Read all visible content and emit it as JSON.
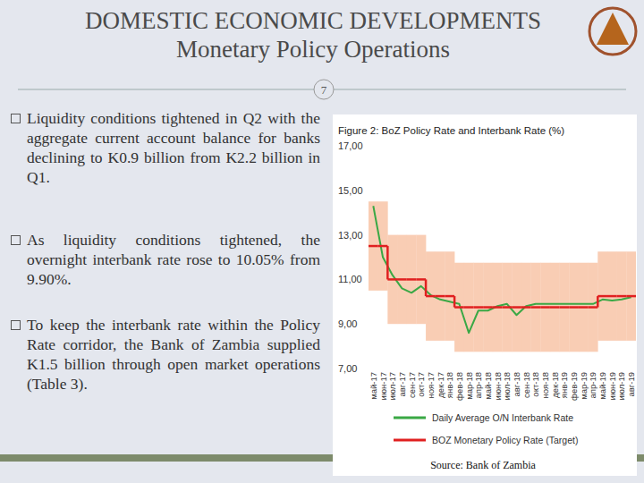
{
  "header": {
    "title": "DOMESTIC ECONOMIC DEVELOPMENTS",
    "subtitle": "Monetary Policy Operations",
    "page_number": "7"
  },
  "bullets": [
    "Liquidity conditions tightened in Q2 with the aggregate current account balance for banks declining to K0.9 billion from K2.2 billion in Q1.",
    "As liquidity conditions tightened, the overnight interbank rate rose to 10.05% from 9.90%.",
    "To keep the interbank rate within the Policy Rate corridor, the Bank of Zambia supplied K1.5 billion through open market operations (Table 3)."
  ],
  "chart_data": {
    "type": "line",
    "title": "Figure 2: BoZ Policy Rate and Interbank Rate (%)",
    "source": "Source: Bank of Zambia",
    "categories": [
      "май-17",
      "июн-17",
      "июл-17",
      "авг-17",
      "сен-17",
      "окт-17",
      "ноя-17",
      "дек-17",
      "янв-18",
      "фев-18",
      "мар-18",
      "апр-18",
      "май-18",
      "июн-18",
      "июл-18",
      "авг-18",
      "сен-18",
      "окт-18",
      "ноя-18",
      "дек-18",
      "янв-19",
      "фев-19",
      "мар-19",
      "апр-19",
      "май-19",
      "июн-19",
      "июл-19",
      "авг-19"
    ],
    "series": [
      {
        "name": "Daily Average O/N Interbank Rate",
        "color": "#3aa845",
        "line_style": "solid",
        "values": [
          14.3,
          12.0,
          11.2,
          10.6,
          10.4,
          10.7,
          10.3,
          10.1,
          10.0,
          9.9,
          8.6,
          9.6,
          9.6,
          9.8,
          9.9,
          9.4,
          9.8,
          9.9,
          9.9,
          9.9,
          9.9,
          9.9,
          9.9,
          9.9,
          10.1,
          10.05,
          10.1,
          10.2
        ]
      },
      {
        "name": "BOZ Monetary Policy Rate (Target)",
        "color": "#e02020",
        "line_style": "step",
        "values": [
          12.5,
          12.5,
          11,
          11,
          11,
          11,
          10.25,
          10.25,
          10.25,
          9.75,
          9.75,
          9.75,
          9.75,
          9.75,
          9.75,
          9.75,
          9.75,
          9.75,
          9.75,
          9.75,
          9.75,
          9.75,
          9.75,
          9.75,
          10.25,
          10.25,
          10.25,
          10.25
        ]
      }
    ],
    "corridor": {
      "color": "#f9cdb4",
      "lower": [
        10.5,
        10.5,
        9,
        9,
        9,
        9,
        8.25,
        8.25,
        8.25,
        7.75,
        7.75,
        7.75,
        7.75,
        7.75,
        7.75,
        7.75,
        7.75,
        7.75,
        7.75,
        7.75,
        7.75,
        7.75,
        7.75,
        7.75,
        8.25,
        8.25,
        8.25,
        8.25
      ],
      "upper": [
        14.5,
        14.5,
        13,
        13,
        13,
        13,
        12.25,
        12.25,
        12.25,
        11.75,
        11.75,
        11.75,
        11.75,
        11.75,
        11.75,
        11.75,
        11.75,
        11.75,
        11.75,
        11.75,
        11.75,
        11.75,
        11.75,
        11.75,
        12.25,
        12.25,
        12.25,
        12.25
      ]
    },
    "ylim": [
      7,
      17
    ],
    "yticks": [
      {
        "value": 7,
        "label": "7,00"
      },
      {
        "value": 9,
        "label": "9,00"
      },
      {
        "value": 11,
        "label": "11,00"
      },
      {
        "value": 13,
        "label": "13,00"
      },
      {
        "value": 15,
        "label": "15,00"
      },
      {
        "value": 17,
        "label": "17,00"
      }
    ],
    "grid": false,
    "legend": "bottom"
  }
}
